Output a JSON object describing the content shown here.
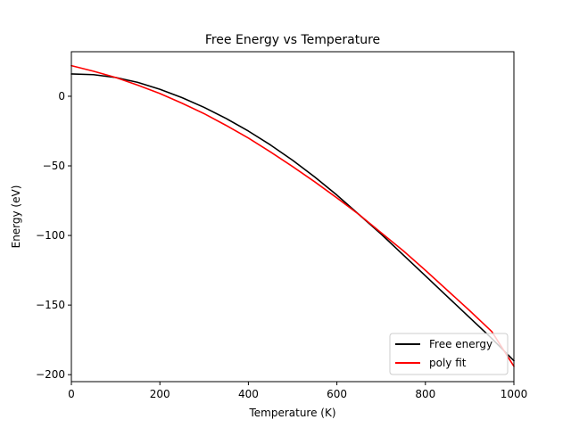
{
  "chart_data": {
    "type": "line",
    "title": "Free Energy vs Temperature",
    "xlabel": "Temperature (K)",
    "ylabel": "Energy (eV)",
    "xlim": [
      0,
      1000
    ],
    "ylim": [
      -205,
      32
    ],
    "x_ticks": [
      0,
      200,
      400,
      600,
      800,
      1000
    ],
    "y_ticks": [
      0,
      -50,
      -100,
      -150,
      -200
    ],
    "x_tick_labels": [
      "0",
      "200",
      "400",
      "600",
      "800",
      "1000"
    ],
    "y_tick_labels": [
      "0",
      "−50",
      "−100",
      "−150",
      "−200"
    ],
    "grid": false,
    "legend_position": "lower-right",
    "x": [
      0,
      50,
      100,
      150,
      200,
      250,
      300,
      350,
      400,
      450,
      500,
      550,
      600,
      650,
      700,
      750,
      800,
      850,
      900,
      950,
      1000
    ],
    "series": [
      {
        "name": "Free energy",
        "color": "#000000",
        "values": [
          16,
          15.5,
          13.5,
          10,
          5,
          -1,
          -8,
          -16,
          -25,
          -35,
          -46,
          -58,
          -71,
          -85,
          -99,
          -114,
          -129,
          -144,
          -159,
          -174,
          -190
        ]
      },
      {
        "name": "poly fit",
        "color": "#ff0000",
        "values": [
          22,
          18,
          13.5,
          8,
          2,
          -5,
          -12.5,
          -21,
          -30,
          -40,
          -50.5,
          -61.5,
          -73,
          -85,
          -98,
          -111,
          -125,
          -139.5,
          -154,
          -169,
          -194
        ]
      }
    ]
  }
}
